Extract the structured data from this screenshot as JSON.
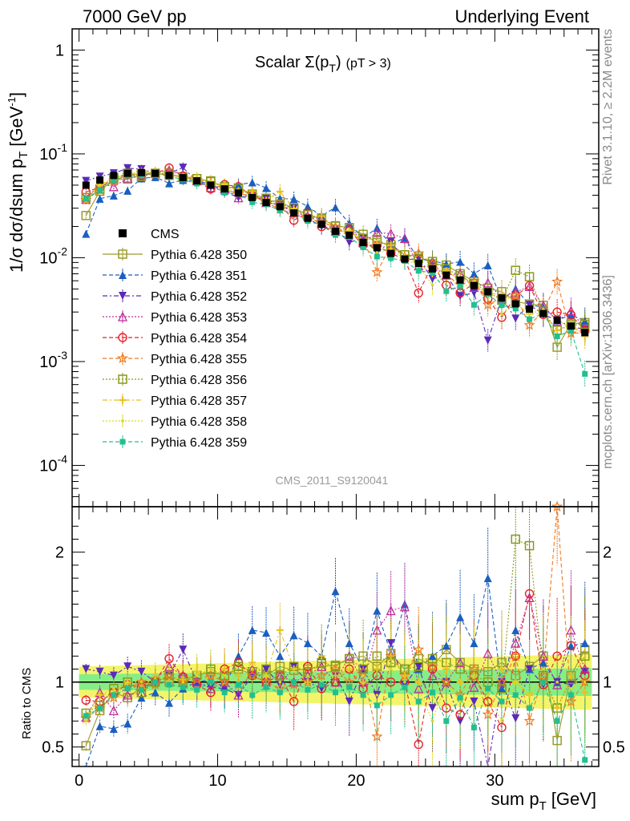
{
  "header": {
    "left": "7000 GeV pp",
    "right": "Underlying Event"
  },
  "side_labels": {
    "rivet": "Rivet 3.1.10, ≥ 2.2M events",
    "mcplots": "mcplots.cern.ch [arXiv:1306.3436]"
  },
  "plot_title": {
    "main": "Scalar Σ(p",
    "sub": "T",
    "close": ")",
    "cut": "(pT >  3)"
  },
  "analysis_tag": "CMS_2011_S9120041",
  "axes": {
    "ylabel_main": "1/σ dσ/dsum p",
    "ylabel_sub": "T",
    "ylabel_unit": "[GeV",
    "ylabel_unit_sup": "-1",
    "ylabel_unit_close": "]",
    "ylabel_ratio": "Ratio to CMS",
    "xlabel_main": "sum p",
    "xlabel_sub": "T",
    "xlabel_unit": "[GeV]"
  },
  "legend": [
    {
      "label": "CMS",
      "color": "#000000",
      "marker": "square-filled",
      "dash": "none"
    },
    {
      "label": "Pythia 6.428 350",
      "color": "#9b9b2f",
      "marker": "square-open",
      "dash": "solid"
    },
    {
      "label": "Pythia 6.428 351",
      "color": "#1a5fbf",
      "marker": "triangle-up-filled",
      "dash": "dashed"
    },
    {
      "label": "Pythia 6.428 352",
      "color": "#5b2ab8",
      "marker": "triangle-down-filled",
      "dash": "dashdot"
    },
    {
      "label": "Pythia 6.428 353",
      "color": "#c02f9a",
      "marker": "triangle-up-open",
      "dash": "dotted"
    },
    {
      "label": "Pythia 6.428 354",
      "color": "#e8202a",
      "marker": "circle-open",
      "dash": "dashed"
    },
    {
      "label": "Pythia 6.428 355",
      "color": "#f07a20",
      "marker": "star",
      "dash": "dashed"
    },
    {
      "label": "Pythia 6.428 356",
      "color": "#8a9a1a",
      "marker": "square-open",
      "dash": "dotted"
    },
    {
      "label": "Pythia 6.428 357",
      "color": "#e8c020",
      "marker": "cross",
      "dash": "dashdot"
    },
    {
      "label": "Pythia 6.428 358",
      "color": "#d8d820",
      "marker": "dot",
      "dash": "dotted"
    },
    {
      "label": "Pythia 6.428 359",
      "color": "#20c090",
      "marker": "square-filled",
      "dash": "dashed"
    }
  ],
  "chart_data": {
    "type": "scatter",
    "log_y": true,
    "xlim": [
      -0.5,
      37.5
    ],
    "ylim": [
      4e-05,
      1.6
    ],
    "ratio_ylim": [
      0.35,
      2.35
    ],
    "x_ticks": [
      0,
      10,
      20,
      30
    ],
    "y_ticks": [
      {
        "v": 0.0001,
        "base": "10",
        "exp": "-4"
      },
      {
        "v": 0.001,
        "base": "10",
        "exp": "-3"
      },
      {
        "v": 0.01,
        "base": "10",
        "exp": "-2"
      },
      {
        "v": 0.1,
        "base": "10",
        "exp": "-1"
      },
      {
        "v": 1,
        "base": "1",
        "exp": ""
      }
    ],
    "ratio_ticks": [
      {
        "v": 0.5,
        "label": "0.5"
      },
      {
        "v": 1,
        "label": "1"
      },
      {
        "v": 2,
        "label": "2"
      }
    ],
    "x": [
      0.5,
      1.5,
      2.5,
      3.5,
      4.5,
      5.5,
      6.5,
      7.5,
      8.5,
      9.5,
      10.5,
      11.5,
      12.5,
      13.5,
      14.5,
      15.5,
      16.5,
      17.5,
      18.5,
      19.5,
      20.5,
      21.5,
      22.5,
      23.5,
      24.5,
      25.5,
      26.5,
      27.5,
      28.5,
      29.5,
      30.5,
      31.5,
      32.5,
      33.5,
      34.5,
      35.5,
      36.5
    ],
    "cms": [
      0.05,
      0.056,
      0.062,
      0.065,
      0.066,
      0.065,
      0.062,
      0.059,
      0.055,
      0.05,
      0.046,
      0.042,
      0.038,
      0.034,
      0.031,
      0.027,
      0.024,
      0.021,
      0.018,
      0.0165,
      0.014,
      0.0125,
      0.011,
      0.0097,
      0.0088,
      0.0078,
      0.0068,
      0.0061,
      0.0054,
      0.0047,
      0.0041,
      0.0036,
      0.0032,
      0.0029,
      0.0025,
      0.0022,
      0.0019
    ],
    "ratios": [
      [
        0.51,
        0.78,
        0.92,
        0.88,
        0.96,
        1.0,
        1.0,
        1.02,
        1.05,
        1.08,
        1.05,
        1.1,
        1.06,
        1.05,
        1.12,
        1.09,
        1.1,
        1.12,
        1.13,
        1.18,
        1.2,
        1.12,
        1.22,
        1.1,
        1.18,
        1.12,
        1.25,
        1.15,
        1.1,
        1.08,
        1.15,
        1.05,
        1.12,
        1.2,
        0.55,
        1.05,
        1.25
      ],
      [
        0.34,
        0.66,
        0.64,
        0.68,
        0.88,
        0.92,
        0.84,
        0.95,
        1.0,
        1.02,
        0.96,
        1.2,
        1.4,
        1.38,
        1.2,
        1.36,
        1.3,
        1.2,
        1.7,
        1.3,
        1.1,
        1.55,
        1.22,
        1.6,
        1.1,
        1.2,
        1.28,
        1.5,
        1.3,
        1.8,
        0.95,
        1.4,
        1.1,
        1.15,
        1.0,
        1.28,
        1.3
      ],
      [
        1.1,
        1.08,
        1.05,
        1.12,
        1.08,
        1.0,
        1.05,
        1.25,
        1.0,
        0.96,
        0.95,
        0.9,
        1.05,
        1.1,
        0.98,
        1.12,
        1.0,
        0.95,
        1.05,
        0.85,
        1.1,
        0.9,
        1.3,
        0.98,
        1.12,
        0.8,
        1.0,
        0.7,
        0.85,
        0.34,
        1.0,
        0.72,
        1.1,
        0.98,
        1.0,
        0.98,
        1.08
      ],
      [
        0.73,
        0.92,
        0.78,
        0.9,
        0.92,
        1.02,
        1.12,
        1.05,
        1.0,
        0.95,
        1.0,
        0.9,
        1.1,
        1.0,
        1.05,
        1.0,
        1.05,
        1.12,
        1.0,
        1.2,
        1.0,
        1.4,
        1.55,
        1.58,
        0.95,
        1.05,
        1.0,
        1.15,
        0.96,
        1.22,
        1.0,
        1.3,
        1.65,
        1.2,
        0.98,
        1.4,
        1.1
      ],
      [
        0.86,
        0.85,
        0.92,
        0.98,
        0.96,
        1.0,
        1.18,
        1.04,
        0.98,
        0.92,
        1.1,
        1.15,
        1.05,
        1.0,
        1.05,
        0.85,
        1.12,
        0.95,
        1.0,
        1.1,
        0.95,
        1.05,
        1.0,
        1.0,
        0.52,
        1.1,
        0.8,
        0.75,
        1.05,
        0.85,
        0.65,
        1.2,
        1.68,
        0.98,
        1.2,
        1.28,
        1.05
      ],
      [
        0.72,
        0.8,
        0.88,
        0.96,
        1.0,
        0.98,
        1.05,
        1.0,
        1.02,
        1.05,
        1.0,
        0.98,
        1.05,
        1.0,
        0.95,
        0.98,
        1.0,
        1.05,
        1.1,
        1.0,
        1.08,
        0.58,
        1.2,
        1.05,
        1.25,
        1.12,
        1.0,
        0.9,
        1.1,
        0.75,
        1.0,
        1.2,
        0.7,
        1.05,
        2.35,
        0.85,
        1.0
      ],
      [
        0.76,
        0.82,
        0.95,
        1.0,
        0.92,
        1.0,
        1.05,
        1.0,
        1.05,
        1.1,
        1.05,
        1.12,
        1.08,
        1.1,
        1.05,
        1.12,
        1.08,
        1.15,
        1.12,
        1.18,
        1.1,
        1.2,
        1.15,
        1.1,
        1.12,
        1.18,
        1.15,
        1.1,
        1.05,
        1.0,
        0.95,
        2.1,
        2.05,
        1.05,
        0.8,
        1.02,
        1.2
      ],
      [
        0.74,
        0.9,
        0.92,
        1.0,
        0.95,
        1.05,
        1.0,
        1.02,
        1.08,
        1.0,
        1.1,
        1.05,
        1.15,
        1.05,
        1.4,
        1.1,
        1.0,
        1.2,
        1.05,
        1.1,
        1.0,
        1.1,
        1.2,
        1.05,
        1.0,
        0.9,
        1.1,
        1.0,
        1.05,
        0.95,
        1.1,
        1.0,
        0.9,
        1.0,
        0.8,
        1.05,
        0.92
      ],
      [
        0.7,
        0.9,
        0.95,
        1.0,
        1.0,
        1.02,
        1.05,
        1.0,
        1.05,
        1.1,
        1.05,
        1.0,
        1.1,
        1.05,
        1.0,
        1.1,
        1.05,
        1.0,
        1.0,
        1.1,
        1.05,
        0.9,
        1.1,
        1.0,
        0.95,
        0.7,
        1.0,
        0.85,
        1.05,
        0.9,
        0.7,
        1.0,
        0.9,
        1.1,
        1.0,
        0.95,
        1.0
      ],
      [
        0.74,
        0.8,
        0.9,
        0.95,
        0.94,
        1.0,
        0.98,
        0.96,
        0.94,
        1.0,
        0.92,
        0.98,
        0.9,
        0.96,
        0.92,
        1.0,
        0.94,
        0.98,
        0.92,
        0.96,
        0.9,
        0.82,
        0.9,
        0.96,
        0.85,
        0.92,
        0.7,
        0.88,
        0.65,
        0.95,
        0.85,
        0.9,
        0.8,
        1.0,
        0.7,
        0.9,
        0.4
      ]
    ]
  }
}
